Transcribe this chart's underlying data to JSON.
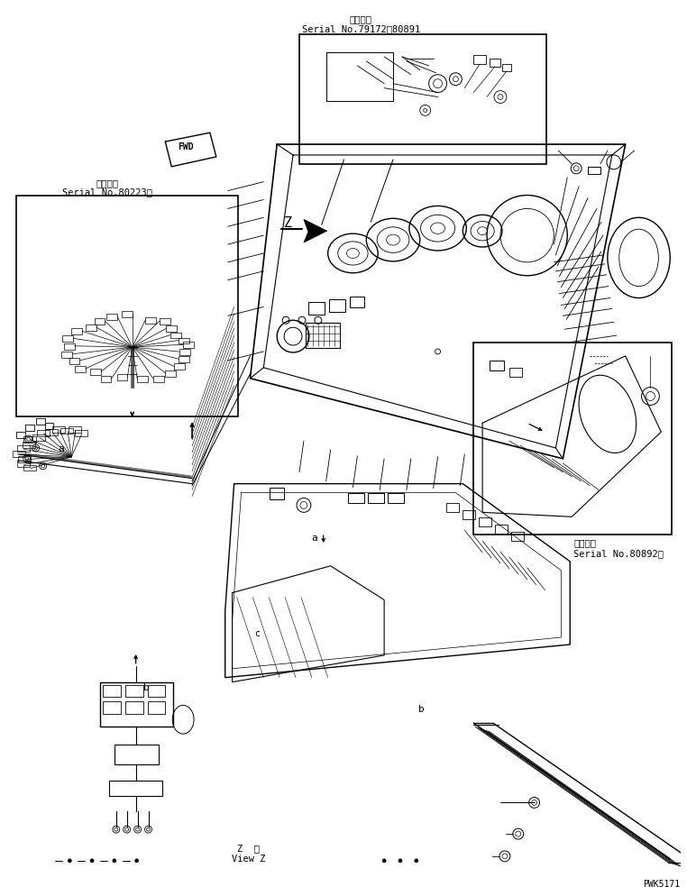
{
  "bg_color": "#ffffff",
  "line_color": "#000000",
  "fig_width": 7.62,
  "fig_height": 9.95,
  "dpi": 100,
  "top_label1": "適用号機",
  "top_label2": "Serial No.79172～80891",
  "left_label1": "適用号機",
  "left_label2": "Serial No.80223～",
  "right_label1": "適用号機",
  "right_label2": "Serial No.80892～",
  "bottom_label1": "Z  見",
  "bottom_label2": "View Z",
  "pwk": "PWK5171"
}
